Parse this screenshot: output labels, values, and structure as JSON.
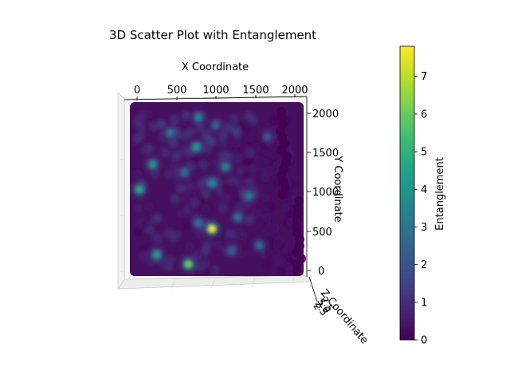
{
  "chart_data": {
    "type": "scatter",
    "projection": "3d",
    "title": "3D Scatter Plot with Entanglement",
    "xlabel": "X Coordinate",
    "ylabel": "Y Coordinate",
    "zlabel": "Z Coordinate",
    "xlim": [
      0,
      2000
    ],
    "ylim": [
      0,
      2000
    ],
    "x_ticks": [
      "0",
      "500",
      "1000",
      "1500",
      "2000"
    ],
    "y_ticks": [
      "0",
      "500",
      "1000",
      "1500",
      "2000"
    ],
    "z_ticks": [
      "2",
      "2.5",
      "5.0",
      "7.5"
    ],
    "grid": true,
    "colormap": "viridis",
    "colorbar": {
      "label": "Entanglement",
      "range": [
        0,
        7.8
      ],
      "ticks": [
        "0",
        "1",
        "2",
        "3",
        "4",
        "5",
        "6",
        "7"
      ]
    },
    "hotspots": [
      {
        "x": 950,
        "y": 530,
        "value": 7.8
      },
      {
        "x": 650,
        "y": 80,
        "value": 6.2
      },
      {
        "x": 30,
        "y": 1030,
        "value": 4.9
      },
      {
        "x": 750,
        "y": 1570,
        "value": 4.4
      },
      {
        "x": 200,
        "y": 1350,
        "value": 4.2
      },
      {
        "x": 250,
        "y": 200,
        "value": 4.5
      },
      {
        "x": 780,
        "y": 1950,
        "value": 3.6
      },
      {
        "x": 950,
        "y": 1110,
        "value": 3.8
      },
      {
        "x": 1120,
        "y": 1320,
        "value": 3.5
      },
      {
        "x": 1420,
        "y": 950,
        "value": 3.2
      },
      {
        "x": 780,
        "y": 600,
        "value": 3.0
      },
      {
        "x": 1280,
        "y": 680,
        "value": 3.0
      },
      {
        "x": 420,
        "y": 1750,
        "value": 3.1
      },
      {
        "x": 1550,
        "y": 320,
        "value": 2.8
      },
      {
        "x": 600,
        "y": 1250,
        "value": 2.9
      },
      {
        "x": 1000,
        "y": 1850,
        "value": 2.6
      },
      {
        "x": 1650,
        "y": 1700,
        "value": 2.2
      },
      {
        "x": 1200,
        "y": 250,
        "value": 2.5
      }
    ]
  }
}
